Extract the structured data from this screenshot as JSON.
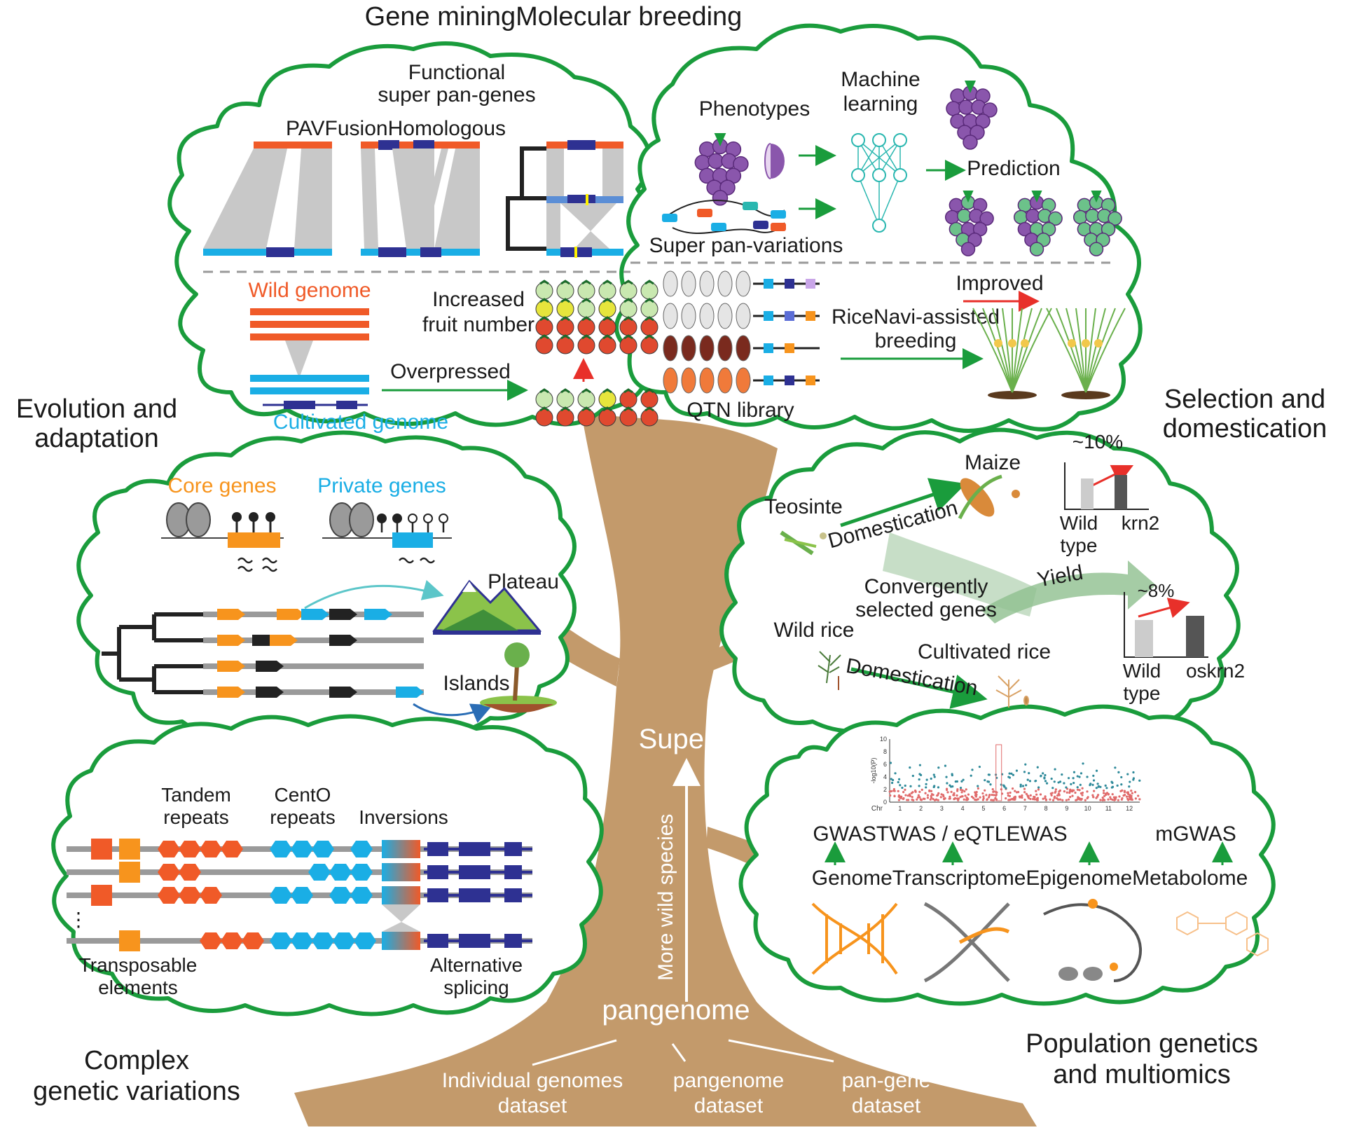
{
  "title_line1": "Gene miningMolecular breeding",
  "trunk": {
    "super": "Super",
    "arrow_label": "More wild species",
    "pangenome": "pangenome",
    "roots": [
      {
        "line1": "Individual genomes",
        "line2": "dataset"
      },
      {
        "line1": "pangenome",
        "line2": "dataset"
      },
      {
        "line1": "pan-gene",
        "line2": "dataset"
      }
    ]
  },
  "colors": {
    "cloud_outline": "#1a9c3c",
    "trunk": "#c39a6b",
    "wild": "#f05a28",
    "cultivated": "#1aaee5",
    "navy": "#2e3192",
    "core": "#f7941d",
    "gray_band": "#c8c8c8",
    "teal_ml": "#2ab7b0",
    "grape": "#8a56ac",
    "red_arrow": "#e8302a"
  },
  "section_labels": {
    "evolution": {
      "line1": "Evolution and",
      "line2": "adaptation"
    },
    "selection": {
      "line1": "Selection and",
      "line2": "domestication"
    },
    "complex": {
      "line1": "Complex",
      "line2": "genetic variations"
    },
    "population": {
      "line1": "Population genetics",
      "line2": "and multiomics"
    }
  },
  "gene_mining": {
    "functional": {
      "line1": "Functional",
      "line2": "super pan-genes"
    },
    "pav_row": "PAVFusionHomologous",
    "wild_genome": "Wild genome",
    "cultivated_genome": "Cultivated genome",
    "overpressed": "Overpressed",
    "increased": {
      "line1": "Increased",
      "line2": "fruit number"
    }
  },
  "molecular": {
    "phenotypes": "Phenotypes",
    "machine": {
      "line1": "Machine",
      "line2": "learning"
    },
    "prediction": "Prediction",
    "super_pan_variations": "Super pan-variations",
    "improved": "Improved",
    "ricenavi": {
      "line1": "RiceNavi-assisted",
      "line2": "breeding"
    },
    "qtn": "QTN library"
  },
  "evolution": {
    "core_genes": "Core genes",
    "private_genes": "Private genes",
    "plateau": "Plateau",
    "islands": "Islands"
  },
  "selection": {
    "maize": "Maize",
    "teosinte": "Teosinte",
    "domestication": "Domestication",
    "converg": {
      "line1": "Convergently",
      "line2": "selected genes"
    },
    "yield": "Yield",
    "wild_rice": "Wild rice",
    "cultivated_rice": "Cultivated rice",
    "pct1": "~10%",
    "pct2": "~8%",
    "bar1": {
      "wild_line1": "Wild",
      "wild_line2": "type",
      "mutant": "krn2"
    },
    "bar2": {
      "wild_line1": "Wild",
      "wild_line2": "type",
      "mutant": "oskrn2"
    }
  },
  "complex": {
    "tandem": {
      "line1": "Tandem",
      "line2": "repeats"
    },
    "cento": {
      "line1": "CentO",
      "line2": "repeats"
    },
    "inversions": "Inversions",
    "te": {
      "line1": "Transposable",
      "line2": "elements"
    },
    "as": {
      "line1": "Alternative",
      "line2": "splicing"
    },
    "ellipsis": "⋮"
  },
  "population": {
    "omics_row": "GWASTWAS / eQTLEWAS",
    "mgwas": "mGWAS",
    "layers_row": "GenomeTranscriptomeEpigenomeMetabolome",
    "chr_label": "Chr",
    "y_label": "-log10(P)",
    "chromosomes": [
      "1",
      "2",
      "3",
      "4",
      "5",
      "6",
      "7",
      "8",
      "9",
      "10",
      "11",
      "12"
    ],
    "y_ticks": [
      "0",
      "2",
      "4",
      "6",
      "8",
      "10"
    ]
  }
}
